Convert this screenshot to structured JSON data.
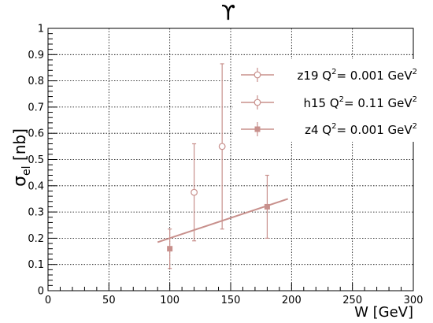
{
  "chart_data": {
    "type": "scatter",
    "title": "ϒ",
    "xlabel": "W [GeV]",
    "ylabel_main": "σ",
    "ylabel_sub": "el",
    "ylabel_unit": " [nb]",
    "xlim": [
      0,
      300
    ],
    "ylim": [
      0,
      1
    ],
    "x_ticks": [
      0,
      50,
      100,
      150,
      200,
      250,
      300
    ],
    "x_tick_labels": [
      "0",
      "50",
      "100",
      "150",
      "200",
      "250",
      "300"
    ],
    "y_ticks": [
      0,
      0.1,
      0.2,
      0.3,
      0.4,
      0.5,
      0.6,
      0.7,
      0.8,
      0.9,
      1
    ],
    "y_tick_labels": [
      "0",
      "0.1",
      "0.2",
      "0.3",
      "0.4",
      "0.5",
      "0.6",
      "0.7",
      "0.8",
      "0.9",
      "1"
    ],
    "grid": true,
    "legend_position": "top-right",
    "series_color": "#c8908c",
    "series": [
      {
        "name": "z19 Q²= 0.001 GeV²",
        "legend_parts": [
          "z19 Q",
          "2",
          "= 0.001 GeV",
          "2"
        ],
        "marker": "open-circle",
        "points": [
          {
            "x": 120,
            "y": 0.375,
            "y_low": 0.19,
            "y_high": 0.56
          }
        ]
      },
      {
        "name": "h15 Q²=  0.11 GeV²",
        "legend_parts": [
          "h15 Q",
          "2",
          "=  0.11 GeV",
          "2"
        ],
        "marker": "open-circle",
        "points": [
          {
            "x": 143,
            "y": 0.55,
            "y_low": 0.235,
            "y_high": 0.865
          }
        ]
      },
      {
        "name": "z4 Q²= 0.001 GeV²",
        "legend_parts": [
          "z4 Q",
          "2",
          "= 0.001 GeV",
          "2"
        ],
        "marker": "filled-square",
        "points": [
          {
            "x": 100,
            "y": 0.16,
            "y_low": 0.085,
            "y_high": 0.235
          },
          {
            "x": 180,
            "y": 0.32,
            "y_low": 0.2,
            "y_high": 0.44
          }
        ]
      }
    ],
    "fit_line": {
      "x": [
        90,
        197
      ],
      "y": [
        0.185,
        0.35
      ]
    }
  }
}
